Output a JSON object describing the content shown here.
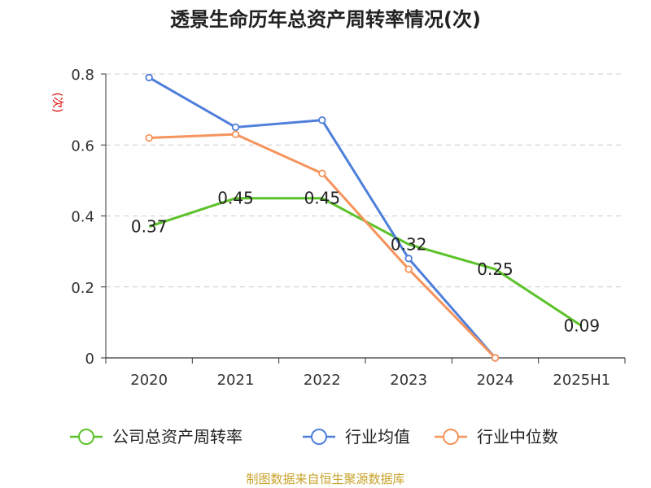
{
  "chart_data": {
    "type": "line",
    "title": "透景生命历年总资产周转率情况(次)",
    "ylabel": "(次)",
    "xlabel": "",
    "categories": [
      "2020",
      "2021",
      "2022",
      "2023",
      "2024",
      "2025H1"
    ],
    "ylim": [
      0,
      0.8
    ],
    "yticks": [
      0,
      0.2,
      0.4,
      0.6,
      0.8
    ],
    "ytick_labels": [
      "0",
      "0.2",
      "0.4",
      "0.6",
      "0.8"
    ],
    "grid": true,
    "legend_position": "bottom",
    "series": [
      {
        "name": "公司总资产周转率",
        "color": "#5cc22a",
        "values": [
          0.37,
          0.45,
          0.45,
          0.32,
          0.25,
          0.09
        ],
        "labels": [
          "0.37",
          "0.45",
          "0.45",
          "0.32",
          "0.25",
          "0.09"
        ],
        "show_labels": true,
        "markers": false
      },
      {
        "name": "行业均值",
        "color": "#4f7fdb",
        "values": [
          0.79,
          0.65,
          0.67,
          0.28,
          0,
          null
        ],
        "show_labels": false,
        "markers": true
      },
      {
        "name": "行业中位数",
        "color": "#f5945c",
        "values": [
          0.62,
          0.63,
          0.52,
          0.25,
          0,
          null
        ],
        "show_labels": false,
        "markers": true
      }
    ],
    "source": "制图数据来自恒生聚源数据库"
  }
}
